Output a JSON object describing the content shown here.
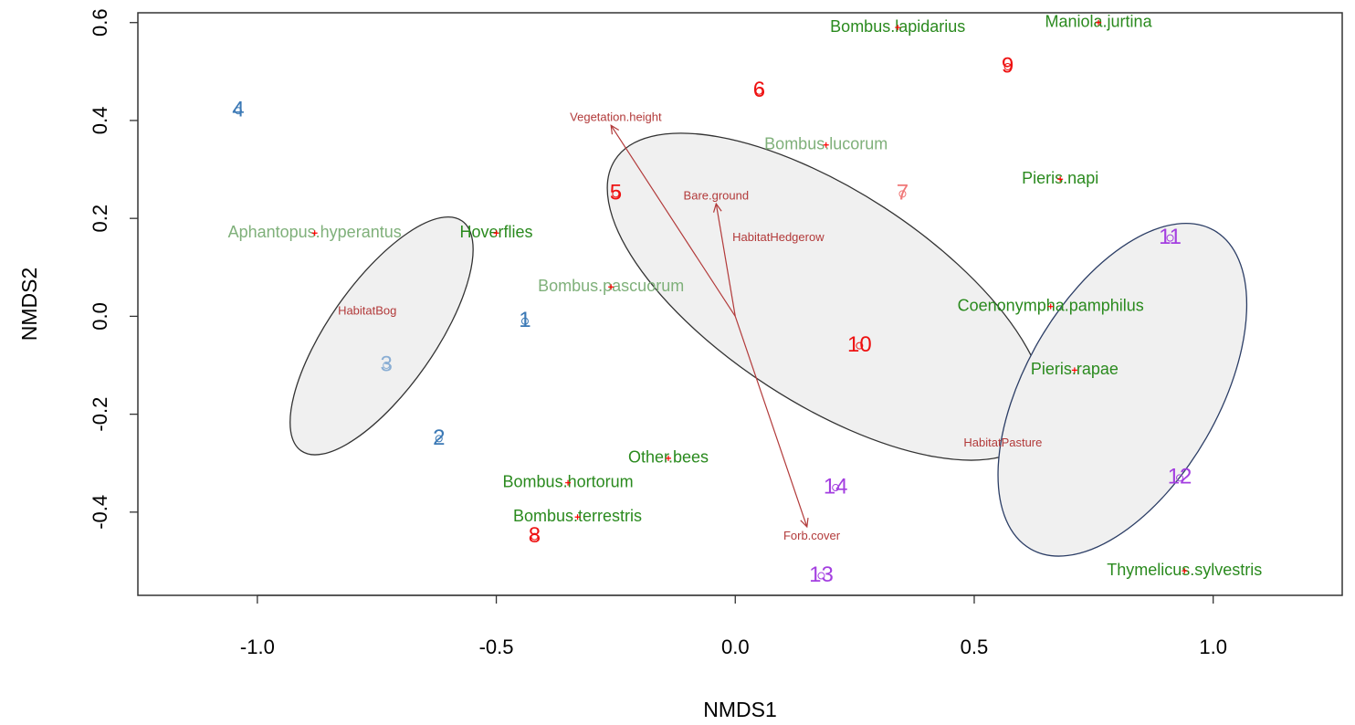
{
  "chart_data": {
    "type": "scatter",
    "xlabel": "NMDS1",
    "ylabel": "NMDS2",
    "xlim": [
      -1.25,
      1.27
    ],
    "ylim": [
      -0.57,
      0.62
    ],
    "x_ticks": [
      -1.0,
      -0.5,
      0.0,
      0.5,
      1.0
    ],
    "x_tick_labels": [
      "-1.0",
      "-0.5",
      "0.0",
      "0.5",
      "1.0"
    ],
    "y_ticks": [
      -0.4,
      -0.2,
      0.0,
      0.2,
      0.4,
      0.6
    ],
    "y_tick_labels": [
      "-0.4",
      "-0.2",
      "0.0",
      "0.2",
      "0.4",
      "0.6"
    ],
    "grid": false,
    "colors": {
      "species": "#2a8a1e",
      "species_faded": "#7fb07a",
      "vector": "#b23a3a",
      "vector_label": "#b23a3a",
      "species_point": "#ff0000",
      "ellipse_fill": "#f0f0f0",
      "ellipse_stroke": "#333333",
      "ellipse_stroke_blue": "#2c3e66",
      "site_red": "#ee1111",
      "site_red_light": "#f07777",
      "site_blue": "#3a78b5",
      "site_blue_light": "#8aaed4",
      "site_purple": "#a33ee0"
    },
    "ellipses": [
      {
        "cx": -0.74,
        "cy": -0.04,
        "rx": 0.29,
        "ry": 0.11,
        "angle_deg": -55,
        "stroke": "ellipse_stroke"
      },
      {
        "cx": 0.19,
        "cy": 0.04,
        "rx": 0.52,
        "ry": 0.22,
        "angle_deg": 33,
        "stroke": "ellipse_stroke"
      },
      {
        "cx": 0.81,
        "cy": -0.15,
        "rx": 0.38,
        "ry": 0.2,
        "angle_deg": -60,
        "stroke": "ellipse_stroke_blue"
      }
    ],
    "species": [
      {
        "name": "Bombus.lapidarius",
        "x": 0.34,
        "y": 0.59,
        "faded": false
      },
      {
        "name": "Maniola.jurtina",
        "x": 0.76,
        "y": 0.6,
        "faded": false
      },
      {
        "name": "Bombus.lucorum",
        "x": 0.19,
        "y": 0.35,
        "faded": true
      },
      {
        "name": "Pieris.napi",
        "x": 0.68,
        "y": 0.28,
        "faded": false
      },
      {
        "name": "Aphantopus.hyperantus",
        "x": -0.88,
        "y": 0.17,
        "faded": true
      },
      {
        "name": "Hoverflies",
        "x": -0.5,
        "y": 0.17,
        "faded": false
      },
      {
        "name": "Bombus.pascuorum",
        "x": -0.26,
        "y": 0.06,
        "faded": true
      },
      {
        "name": "Coenonympha.pamphilus",
        "x": 0.66,
        "y": 0.02,
        "faded": false
      },
      {
        "name": "Pieris.rapae",
        "x": 0.71,
        "y": -0.11,
        "faded": false
      },
      {
        "name": "Other.bees",
        "x": -0.14,
        "y": -0.29,
        "faded": false
      },
      {
        "name": "Bombus.hortorum",
        "x": -0.35,
        "y": -0.34,
        "faded": false
      },
      {
        "name": "Bombus.terrestris",
        "x": -0.33,
        "y": -0.41,
        "faded": false
      },
      {
        "name": "Thymelicus.sylvestris",
        "x": 0.94,
        "y": -0.52,
        "faded": false
      }
    ],
    "sites": [
      {
        "label": "1",
        "x": -0.44,
        "y": -0.01,
        "color": "site_blue"
      },
      {
        "label": "2",
        "x": -0.62,
        "y": -0.25,
        "color": "site_blue"
      },
      {
        "label": "3",
        "x": -0.73,
        "y": -0.1,
        "color": "site_blue_light"
      },
      {
        "label": "4",
        "x": -1.04,
        "y": 0.42,
        "color": "site_blue"
      },
      {
        "label": "5",
        "x": -0.25,
        "y": 0.25,
        "color": "site_red"
      },
      {
        "label": "6",
        "x": 0.05,
        "y": 0.46,
        "color": "site_red"
      },
      {
        "label": "7",
        "x": 0.35,
        "y": 0.25,
        "color": "site_red_light"
      },
      {
        "label": "8",
        "x": -0.42,
        "y": -0.45,
        "color": "site_red"
      },
      {
        "label": "9",
        "x": 0.57,
        "y": 0.51,
        "color": "site_red"
      },
      {
        "label": "10",
        "x": 0.26,
        "y": -0.06,
        "color": "site_red"
      },
      {
        "label": "11",
        "x": 0.91,
        "y": 0.16,
        "color": "site_purple"
      },
      {
        "label": "12",
        "x": 0.93,
        "y": -0.33,
        "color": "site_purple"
      },
      {
        "label": "13",
        "x": 0.18,
        "y": -0.53,
        "color": "site_purple"
      },
      {
        "label": "14",
        "x": 0.21,
        "y": -0.35,
        "color": "site_purple"
      }
    ],
    "vectors": [
      {
        "label": "Vegetation.height",
        "x": -0.26,
        "y": 0.39,
        "label_x": -0.25,
        "label_y": 0.405
      },
      {
        "label": "Bare.ground",
        "x": -0.04,
        "y": 0.23,
        "label_x": -0.04,
        "label_y": 0.245
      },
      {
        "label": "Forb.cover",
        "x": 0.15,
        "y": -0.43,
        "label_x": 0.16,
        "label_y": -0.45
      }
    ],
    "factor_centroids": [
      {
        "label": "HabitatHedgerow",
        "x": 0.09,
        "y": 0.16
      },
      {
        "label": "HabitatBog",
        "x": -0.77,
        "y": 0.01
      },
      {
        "label": "HabitatPasture",
        "x": 0.56,
        "y": -0.26
      }
    ]
  }
}
